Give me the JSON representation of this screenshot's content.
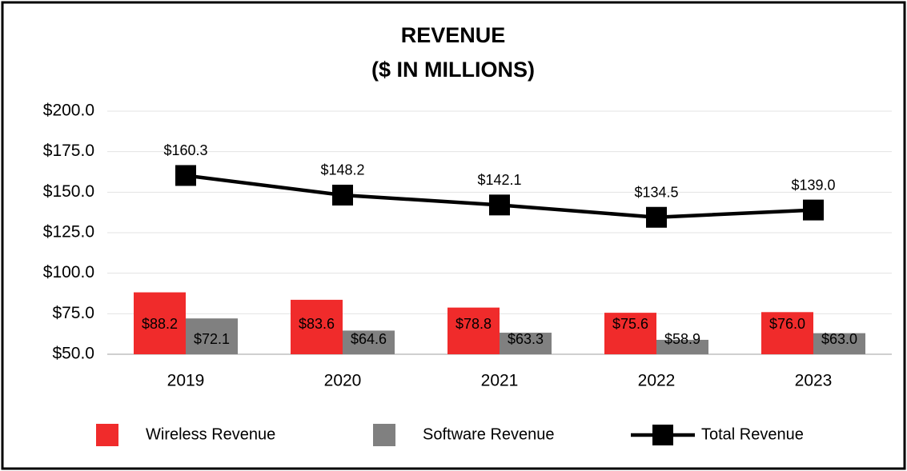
{
  "chart_data": {
    "type": "bar",
    "title": [
      "REVENUE",
      "($ IN MILLIONS)"
    ],
    "categories": [
      "2019",
      "2020",
      "2021",
      "2022",
      "2023"
    ],
    "series": [
      {
        "name": "Wireless Revenue",
        "color": "#f02b2b",
        "values": [
          88.2,
          83.6,
          78.8,
          75.6,
          76.0
        ],
        "value_labels": [
          "$88.2",
          "$83.6",
          "$78.8",
          "$75.6",
          "$76.0"
        ]
      },
      {
        "name": "Software Revenue",
        "color": "#808080",
        "values": [
          72.1,
          64.6,
          63.3,
          58.9,
          63.0
        ],
        "value_labels": [
          "$72.1",
          "$64.6",
          "$63.3",
          "$58.9",
          "$63.0"
        ]
      },
      {
        "name": "Total Revenue",
        "type": "line",
        "color": "#000000",
        "values": [
          160.3,
          148.2,
          142.1,
          134.5,
          139.0
        ],
        "value_labels": [
          "$160.3",
          "$148.2",
          "$142.1",
          "$134.5",
          "$139.0"
        ]
      }
    ],
    "ylim": [
      50,
      200
    ],
    "yticks": [
      {
        "value": 50,
        "label": "$50.0"
      },
      {
        "value": 75,
        "label": "$75.0"
      },
      {
        "value": 100,
        "label": "$100.0"
      },
      {
        "value": 125,
        "label": "$125.0"
      },
      {
        "value": 150,
        "label": "$150.0"
      },
      {
        "value": 175,
        "label": "$175.0"
      },
      {
        "value": 200,
        "label": "$200.0"
      }
    ],
    "grid": true,
    "legend": "bottom"
  }
}
